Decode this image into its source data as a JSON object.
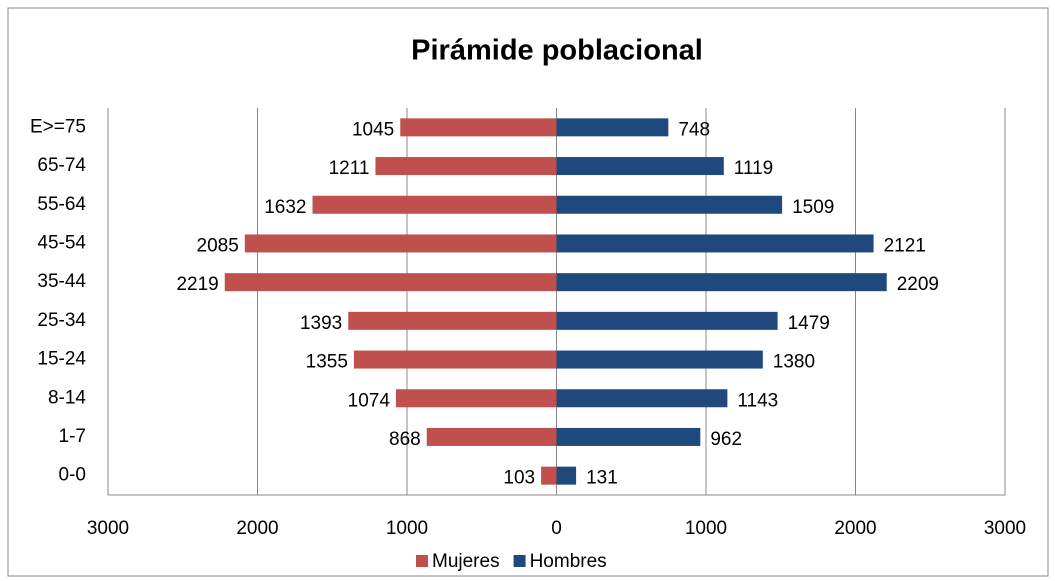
{
  "chart_data": {
    "type": "bar",
    "orientation": "horizontal",
    "title": "Pirámide poblacional",
    "categories": [
      "E>=75",
      "65-74",
      "55-64",
      "45-54",
      "35-44",
      "25-34",
      "15-24",
      "8-14",
      "1-7",
      "0-0"
    ],
    "series": [
      {
        "name": "Mujeres",
        "color": "#c0504d",
        "values": [
          -1045,
          -1211,
          -1632,
          -2085,
          -2219,
          -1393,
          -1355,
          -1074,
          -868,
          -103
        ],
        "value_labels": [
          "1045",
          "1211",
          "1632",
          "2085",
          "2219",
          "1393",
          "1355",
          "1074",
          "868",
          "103"
        ]
      },
      {
        "name": "Hombres",
        "color": "#1f497d",
        "values": [
          748,
          1119,
          1509,
          2121,
          2209,
          1479,
          1380,
          1143,
          962,
          131
        ]
      }
    ],
    "xlim": [
      -3000,
      3000
    ],
    "xticks": [
      {
        "value": -3000,
        "label": "3000"
      },
      {
        "value": -2000,
        "label": "2000"
      },
      {
        "value": -1000,
        "label": "1000"
      },
      0,
      1000,
      2000,
      3000
    ],
    "grid": true,
    "legend": "bottom"
  }
}
